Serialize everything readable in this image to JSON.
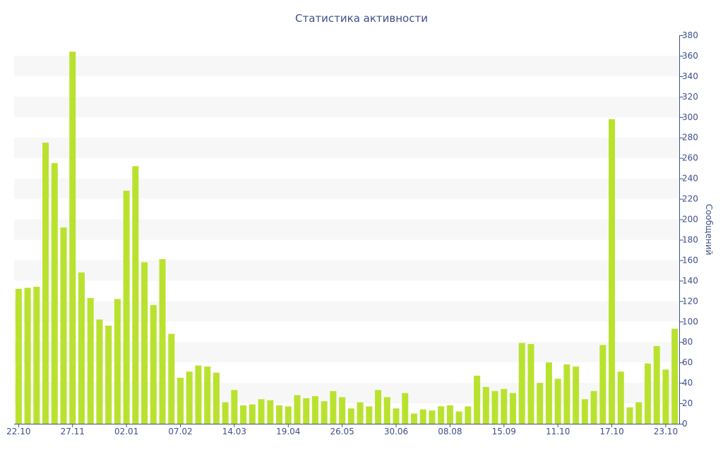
{
  "colors": {
    "bar": "#b9e22f",
    "band": "#f7f7f7",
    "axis": "#3d4f8a",
    "text": "#3d4f8a"
  },
  "chart_data": {
    "type": "bar",
    "title": "Статистика активности",
    "ylabel": "Сообщений",
    "xlabel": "",
    "ylim": [
      0,
      380
    ],
    "y_ticks": [
      0,
      20,
      40,
      60,
      80,
      100,
      120,
      140,
      160,
      180,
      200,
      220,
      240,
      260,
      280,
      300,
      320,
      340,
      360,
      380
    ],
    "y_axis_side": "right",
    "grid": "alternating horizontal bands",
    "x_tick_labels": [
      "22.10",
      "27.11",
      "02.01",
      "07.02",
      "14.03",
      "19.04",
      "26.05",
      "30.06",
      "08.08",
      "15.09",
      "11.10",
      "17.10",
      "23.10"
    ],
    "x_tick_bar_index": [
      0,
      6,
      12,
      18,
      24,
      30,
      36,
      42,
      48,
      54,
      60,
      66,
      72
    ],
    "values": [
      132,
      133,
      134,
      275,
      255,
      192,
      364,
      148,
      123,
      102,
      96,
      122,
      228,
      252,
      158,
      116,
      161,
      88,
      45,
      51,
      57,
      56,
      50,
      21,
      33,
      18,
      19,
      24,
      23,
      18,
      17,
      28,
      25,
      27,
      22,
      32,
      26,
      15,
      21,
      17,
      33,
      26,
      15,
      30,
      10,
      14,
      13,
      17,
      18,
      12,
      17,
      47,
      36,
      32,
      34,
      30,
      79,
      78,
      40,
      60,
      44,
      58,
      56,
      24,
      32,
      77,
      298,
      51,
      16,
      21,
      59,
      76,
      53,
      93
    ]
  }
}
